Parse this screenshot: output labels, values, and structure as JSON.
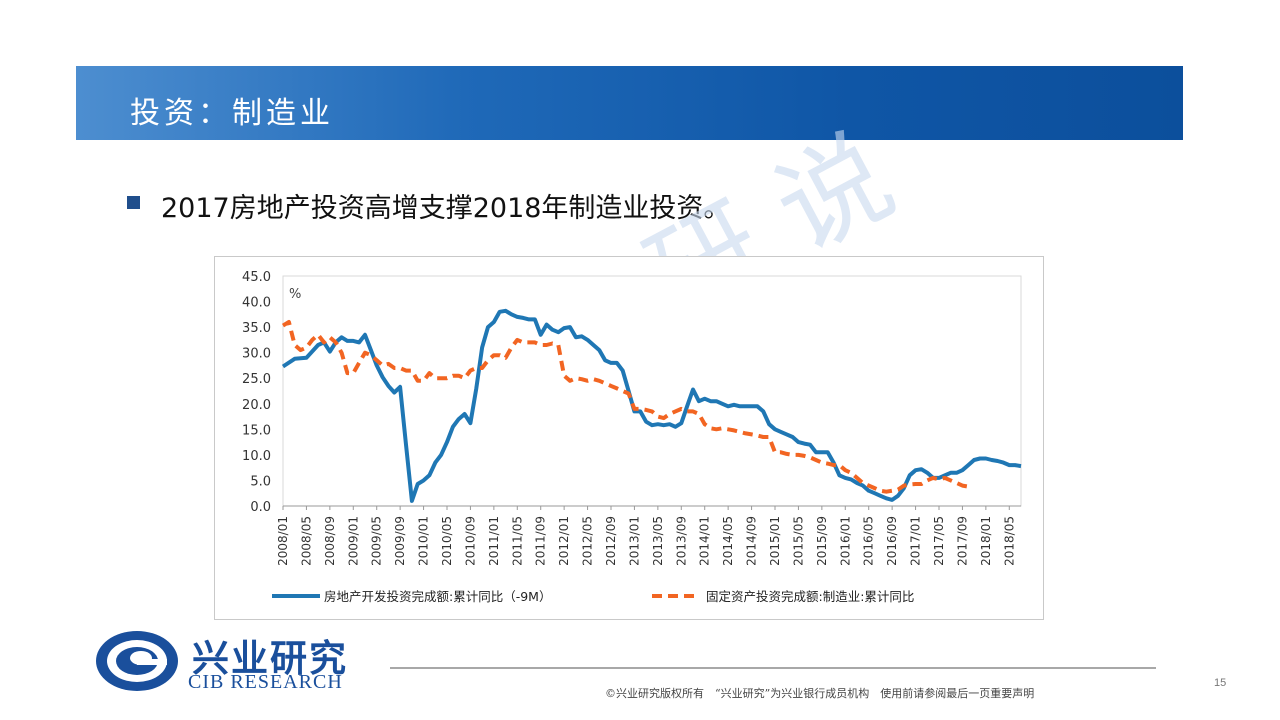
{
  "slide": {
    "title": "投资：制造业",
    "bullet": "2017房地产投资高增支撑2018年制造业投资。",
    "page_number": "15"
  },
  "footer": {
    "disclaimer": "©兴业研究版权所有　“兴业研究”为兴业银行成员机构　使用前请参阅最后一页重要声明",
    "logo_cn": "兴业研究",
    "logo_en": "CIB RESEARCH"
  },
  "watermark": {
    "text": "研 说"
  },
  "colors": {
    "title_bar": "#0f56a6",
    "series1": "#1f77b4",
    "series2": "#f26522",
    "logo": "#1a4f9c"
  },
  "chart_data": {
    "type": "line",
    "unit_label": "%",
    "ylim": [
      0,
      45
    ],
    "y_ticks": [
      "45.0",
      "40.0",
      "35.0",
      "30.0",
      "25.0",
      "20.0",
      "15.0",
      "10.0",
      "5.0",
      "0.0"
    ],
    "x_tick_labels": [
      "2008/01",
      "2008/05",
      "2008/09",
      "2009/01",
      "2009/05",
      "2009/09",
      "2010/01",
      "2010/05",
      "2010/09",
      "2011/01",
      "2011/05",
      "2011/09",
      "2012/01",
      "2012/05",
      "2012/09",
      "2013/01",
      "2013/05",
      "2013/09",
      "2014/01",
      "2014/05",
      "2014/09",
      "2015/01",
      "2015/05",
      "2015/09",
      "2016/01",
      "2016/05",
      "2016/09",
      "2017/01",
      "2017/05",
      "2017/09",
      "2018/01",
      "2018/05"
    ],
    "x_start": "2008/01",
    "x_end": "2018/07",
    "grid": false,
    "legend_position": "bottom",
    "series": [
      {
        "name": "房地产开发投资完成额:累计同比（-9M）",
        "style": "solid",
        "points": [
          [
            "2008/01",
            27.3
          ],
          [
            "2008/03",
            28.8
          ],
          [
            "2008/05",
            29.0
          ],
          [
            "2008/07",
            31.5
          ],
          [
            "2008/08",
            32.0
          ],
          [
            "2008/09",
            30.2
          ],
          [
            "2008/10",
            32.0
          ],
          [
            "2008/11",
            33.0
          ],
          [
            "2008/12",
            32.3
          ],
          [
            "2009/01",
            32.3
          ],
          [
            "2009/02",
            32.0
          ],
          [
            "2009/03",
            33.5
          ],
          [
            "2009/04",
            30.5
          ],
          [
            "2009/05",
            27.5
          ],
          [
            "2009/06",
            25.2
          ],
          [
            "2009/07",
            23.5
          ],
          [
            "2009/08",
            22.2
          ],
          [
            "2009/09",
            23.3
          ],
          [
            "2009/10",
            12.0
          ],
          [
            "2009/11",
            1.0
          ],
          [
            "2009/12",
            4.3
          ],
          [
            "2010/01",
            5.0
          ],
          [
            "2010/02",
            6.0
          ],
          [
            "2010/03",
            8.5
          ],
          [
            "2010/04",
            10.0
          ],
          [
            "2010/05",
            12.5
          ],
          [
            "2010/06",
            15.5
          ],
          [
            "2010/07",
            17.0
          ],
          [
            "2010/08",
            18.0
          ],
          [
            "2010/09",
            16.2
          ],
          [
            "2010/10",
            23.0
          ],
          [
            "2010/11",
            31.0
          ],
          [
            "2010/12",
            35.0
          ],
          [
            "2011/01",
            36.0
          ],
          [
            "2011/02",
            38.0
          ],
          [
            "2011/03",
            38.2
          ],
          [
            "2011/04",
            37.5
          ],
          [
            "2011/05",
            37.0
          ],
          [
            "2011/06",
            36.8
          ],
          [
            "2011/07",
            36.5
          ],
          [
            "2011/08",
            36.5
          ],
          [
            "2011/09",
            33.5
          ],
          [
            "2011/10",
            35.5
          ],
          [
            "2011/11",
            34.5
          ],
          [
            "2011/12",
            34.0
          ],
          [
            "2012/01",
            34.8
          ],
          [
            "2012/02",
            35.0
          ],
          [
            "2012/03",
            33.0
          ],
          [
            "2012/04",
            33.2
          ],
          [
            "2012/05",
            32.5
          ],
          [
            "2012/06",
            31.5
          ],
          [
            "2012/07",
            30.5
          ],
          [
            "2012/08",
            28.5
          ],
          [
            "2012/09",
            28.0
          ],
          [
            "2012/10",
            28.0
          ],
          [
            "2012/11",
            26.5
          ],
          [
            "2012/12",
            22.5
          ],
          [
            "2013/01",
            18.5
          ],
          [
            "2013/02",
            18.5
          ],
          [
            "2013/03",
            16.5
          ],
          [
            "2013/04",
            15.8
          ],
          [
            "2013/05",
            16.0
          ],
          [
            "2013/06",
            15.8
          ],
          [
            "2013/07",
            16.0
          ],
          [
            "2013/08",
            15.5
          ],
          [
            "2013/09",
            16.2
          ],
          [
            "2013/10",
            19.5
          ],
          [
            "2013/11",
            22.8
          ],
          [
            "2013/12",
            20.5
          ],
          [
            "2014/01",
            21.0
          ],
          [
            "2014/02",
            20.5
          ],
          [
            "2014/03",
            20.5
          ],
          [
            "2014/04",
            20.0
          ],
          [
            "2014/05",
            19.5
          ],
          [
            "2014/06",
            19.8
          ],
          [
            "2014/07",
            19.5
          ],
          [
            "2014/08",
            19.5
          ],
          [
            "2014/09",
            19.5
          ],
          [
            "2014/10",
            19.5
          ],
          [
            "2014/11",
            18.5
          ],
          [
            "2014/12",
            16.0
          ],
          [
            "2015/01",
            15.0
          ],
          [
            "2015/02",
            14.5
          ],
          [
            "2015/03",
            14.0
          ],
          [
            "2015/04",
            13.5
          ],
          [
            "2015/05",
            12.5
          ],
          [
            "2015/06",
            12.2
          ],
          [
            "2015/07",
            12.0
          ],
          [
            "2015/08",
            10.5
          ],
          [
            "2015/09",
            10.5
          ],
          [
            "2015/10",
            10.5
          ],
          [
            "2015/11",
            8.5
          ],
          [
            "2015/12",
            6.0
          ],
          [
            "2016/01",
            5.5
          ],
          [
            "2016/02",
            5.2
          ],
          [
            "2016/03",
            4.5
          ],
          [
            "2016/04",
            4.0
          ],
          [
            "2016/05",
            3.0
          ],
          [
            "2016/06",
            2.5
          ],
          [
            "2016/07",
            2.0
          ],
          [
            "2016/08",
            1.5
          ],
          [
            "2016/09",
            1.2
          ],
          [
            "2016/10",
            2.0
          ],
          [
            "2016/11",
            3.5
          ],
          [
            "2016/12",
            6.0
          ],
          [
            "2017/01",
            7.0
          ],
          [
            "2017/02",
            7.2
          ],
          [
            "2017/03",
            6.5
          ],
          [
            "2017/04",
            5.5
          ],
          [
            "2017/05",
            5.5
          ],
          [
            "2017/06",
            6.0
          ],
          [
            "2017/07",
            6.5
          ],
          [
            "2017/08",
            6.5
          ],
          [
            "2017/09",
            7.0
          ],
          [
            "2017/10",
            8.0
          ],
          [
            "2017/11",
            9.0
          ],
          [
            "2017/12",
            9.3
          ],
          [
            "2018/01",
            9.3
          ],
          [
            "2018/02",
            9.0
          ],
          [
            "2018/03",
            8.8
          ],
          [
            "2018/04",
            8.5
          ],
          [
            "2018/05",
            8.0
          ],
          [
            "2018/06",
            8.0
          ],
          [
            "2018/07",
            7.8
          ]
        ]
      },
      {
        "name": "固定资产投资完成额:制造业:累计同比",
        "style": "dashed",
        "points": [
          [
            "2008/01",
            35.3
          ],
          [
            "2008/02",
            36.0
          ],
          [
            "2008/03",
            31.5
          ],
          [
            "2008/04",
            30.5
          ],
          [
            "2008/05",
            31.0
          ],
          [
            "2008/06",
            32.5
          ],
          [
            "2008/07",
            33.5
          ],
          [
            "2008/08",
            32.0
          ],
          [
            "2008/09",
            33.0
          ],
          [
            "2008/10",
            32.0
          ],
          [
            "2008/11",
            30.0
          ],
          [
            "2008/12",
            26.0
          ],
          [
            "2009/01",
            26.0
          ],
          [
            "2009/02",
            28.0
          ],
          [
            "2009/03",
            30.0
          ],
          [
            "2009/04",
            29.5
          ],
          [
            "2009/05",
            28.5
          ],
          [
            "2009/06",
            27.5
          ],
          [
            "2009/07",
            27.8
          ],
          [
            "2009/08",
            27.0
          ],
          [
            "2009/09",
            27.0
          ],
          [
            "2009/10",
            26.5
          ],
          [
            "2009/11",
            26.5
          ],
          [
            "2009/12",
            24.5
          ],
          [
            "2010/01",
            24.5
          ],
          [
            "2010/02",
            26.0
          ],
          [
            "2010/03",
            25.0
          ],
          [
            "2010/04",
            25.0
          ],
          [
            "2010/05",
            25.0
          ],
          [
            "2010/06",
            25.5
          ],
          [
            "2010/07",
            25.5
          ],
          [
            "2010/08",
            25.0
          ],
          [
            "2010/09",
            26.5
          ],
          [
            "2010/10",
            27.0
          ],
          [
            "2010/11",
            27.0
          ],
          [
            "2010/12",
            28.5
          ],
          [
            "2011/01",
            29.5
          ],
          [
            "2011/02",
            29.5
          ],
          [
            "2011/03",
            29.0
          ],
          [
            "2011/04",
            31.0
          ],
          [
            "2011/05",
            32.5
          ],
          [
            "2011/06",
            32.0
          ],
          [
            "2011/07",
            32.0
          ],
          [
            "2011/08",
            32.0
          ],
          [
            "2011/09",
            31.5
          ],
          [
            "2011/10",
            31.5
          ],
          [
            "2011/11",
            31.8
          ],
          [
            "2011/12",
            31.5
          ],
          [
            "2012/01",
            25.5
          ],
          [
            "2012/02",
            24.5
          ],
          [
            "2012/03",
            25.0
          ],
          [
            "2012/04",
            24.8
          ],
          [
            "2012/05",
            24.5
          ],
          [
            "2012/06",
            24.8
          ],
          [
            "2012/07",
            24.5
          ],
          [
            "2012/08",
            24.0
          ],
          [
            "2012/09",
            23.5
          ],
          [
            "2012/10",
            23.0
          ],
          [
            "2012/11",
            22.5
          ],
          [
            "2012/12",
            22.0
          ],
          [
            "2013/01",
            19.0
          ],
          [
            "2013/02",
            19.0
          ],
          [
            "2013/03",
            18.8
          ],
          [
            "2013/04",
            18.5
          ],
          [
            "2013/05",
            17.5
          ],
          [
            "2013/06",
            17.2
          ],
          [
            "2013/07",
            18.0
          ],
          [
            "2013/08",
            18.5
          ],
          [
            "2013/09",
            19.0
          ],
          [
            "2013/10",
            18.5
          ],
          [
            "2013/11",
            18.5
          ],
          [
            "2013/12",
            18.0
          ],
          [
            "2014/01",
            16.0
          ],
          [
            "2014/02",
            15.2
          ],
          [
            "2014/03",
            15.0
          ],
          [
            "2014/04",
            15.2
          ],
          [
            "2014/05",
            15.0
          ],
          [
            "2014/06",
            14.8
          ],
          [
            "2014/07",
            14.5
          ],
          [
            "2014/08",
            14.2
          ],
          [
            "2014/09",
            14.0
          ],
          [
            "2014/10",
            13.8
          ],
          [
            "2014/11",
            13.5
          ],
          [
            "2014/12",
            13.5
          ],
          [
            "2015/01",
            10.5
          ],
          [
            "2015/02",
            10.5
          ],
          [
            "2015/03",
            10.2
          ],
          [
            "2015/04",
            10.0
          ],
          [
            "2015/05",
            10.0
          ],
          [
            "2015/06",
            9.8
          ],
          [
            "2015/07",
            9.5
          ],
          [
            "2015/08",
            9.0
          ],
          [
            "2015/09",
            8.5
          ],
          [
            "2015/10",
            8.3
          ],
          [
            "2015/11",
            8.0
          ],
          [
            "2015/12",
            8.0
          ],
          [
            "2016/01",
            7.0
          ],
          [
            "2016/02",
            6.5
          ],
          [
            "2016/03",
            5.5
          ],
          [
            "2016/04",
            4.5
          ],
          [
            "2016/05",
            4.0
          ],
          [
            "2016/06",
            3.5
          ],
          [
            "2016/07",
            3.0
          ],
          [
            "2016/08",
            2.8
          ],
          [
            "2016/09",
            3.0
          ],
          [
            "2016/10",
            3.2
          ],
          [
            "2016/11",
            4.0
          ],
          [
            "2016/12",
            4.2
          ],
          [
            "2017/01",
            4.3
          ],
          [
            "2017/02",
            4.3
          ],
          [
            "2017/03",
            5.0
          ],
          [
            "2017/04",
            5.5
          ],
          [
            "2017/05",
            5.2
          ],
          [
            "2017/06",
            5.5
          ],
          [
            "2017/07",
            5.0
          ],
          [
            "2017/08",
            4.5
          ],
          [
            "2017/09",
            4.0
          ],
          [
            "2017/10",
            3.8
          ]
        ]
      }
    ]
  }
}
